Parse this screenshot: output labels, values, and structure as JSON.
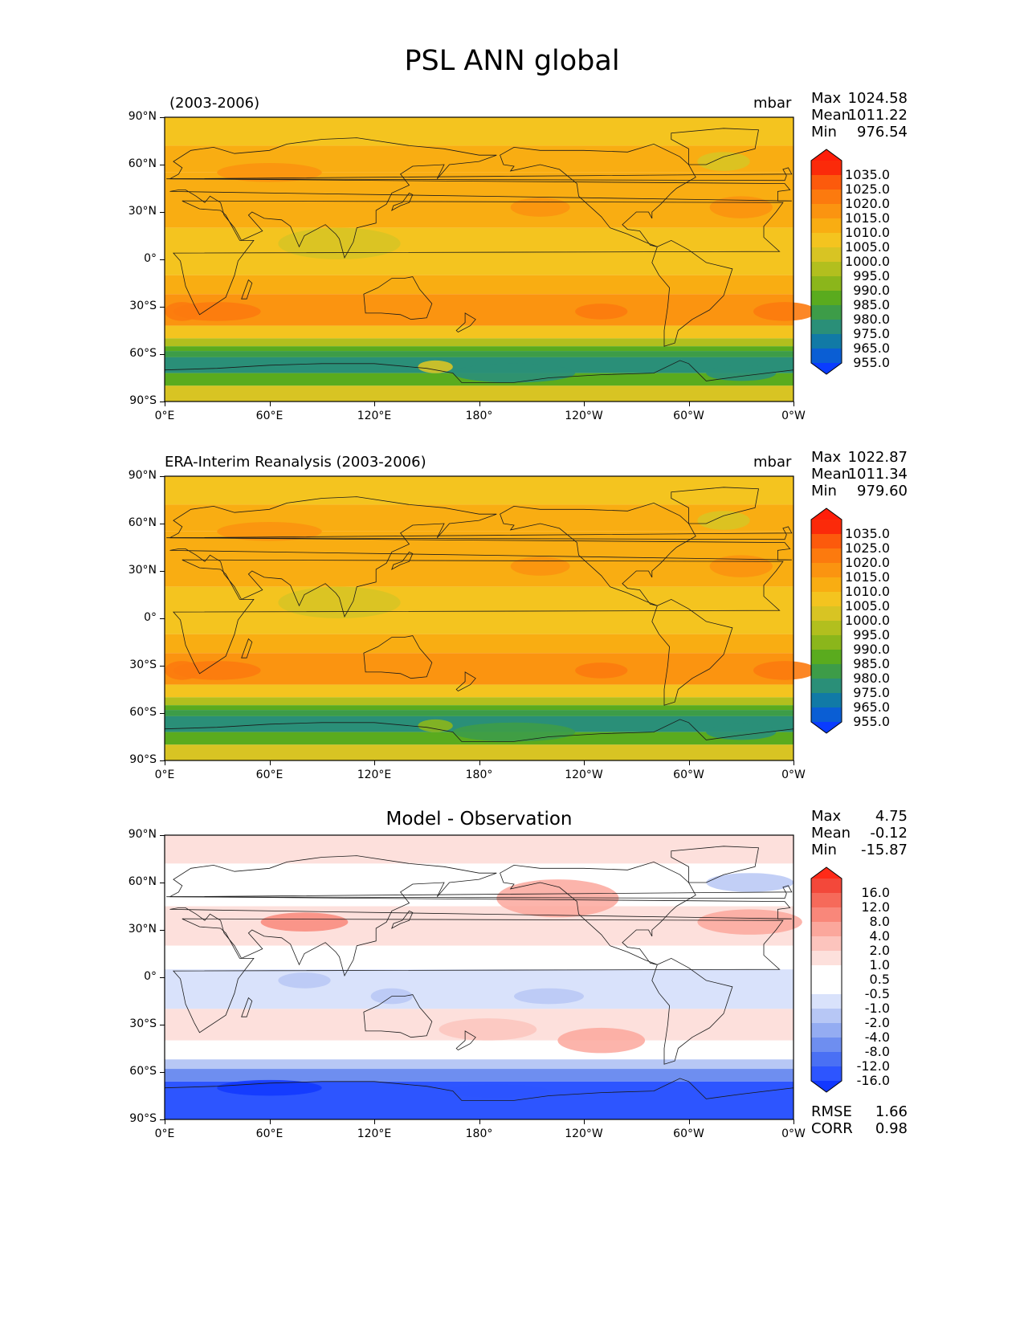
{
  "title": "PSL ANN global",
  "colors": {
    "abs_levels": [
      "#0a3cff",
      "#0a5ed4",
      "#117aa6",
      "#2a8f78",
      "#3d9c48",
      "#5aab1e",
      "#8bb61b",
      "#b2bf1e",
      "#d8c423",
      "#f4c41f",
      "#f9ad12",
      "#fb9410",
      "#fc7a0e",
      "#fc5a0c",
      "#fb2a0a",
      "#ff1e0a"
    ],
    "diff_levels": [
      "#1238ff",
      "#2d55ff",
      "#4a70f4",
      "#6e8ef0",
      "#94acf2",
      "#b7c7f5",
      "#d9e2fb",
      "#ffffff",
      "#ffffff",
      "#fde0dc",
      "#fcc4bd",
      "#fba79c",
      "#f9877a",
      "#f66a5a",
      "#f3483a",
      "#ff2a18"
    ],
    "land_outline": "#1a1a1a"
  },
  "panels": [
    {
      "id": "model",
      "left_title": "(2003-2006)",
      "center_title": "",
      "units": "mbar",
      "stats": [
        {
          "label": "Max",
          "value": "1024.58"
        },
        {
          "label": "Mean",
          "value": "1011.22"
        },
        {
          "label": "Min",
          "value": "976.54"
        }
      ],
      "colorbar_labels": [
        "1035.0",
        "1025.0",
        "1020.0",
        "1015.0",
        "1010.0",
        "1005.0",
        "1000.0",
        "995.0",
        "990.0",
        "985.0",
        "980.0",
        "975.0",
        "965.0",
        "955.0"
      ],
      "footer": []
    },
    {
      "id": "obs",
      "left_title": "ERA-Interim Reanalysis (2003-2006)",
      "center_title": "",
      "units": "mbar",
      "stats": [
        {
          "label": "Max",
          "value": "1022.87"
        },
        {
          "label": "Mean",
          "value": "1011.34"
        },
        {
          "label": "Min",
          "value": "979.60"
        }
      ],
      "colorbar_labels": [
        "1035.0",
        "1025.0",
        "1020.0",
        "1015.0",
        "1010.0",
        "1005.0",
        "1000.0",
        "995.0",
        "990.0",
        "985.0",
        "980.0",
        "975.0",
        "965.0",
        "955.0"
      ],
      "footer": []
    },
    {
      "id": "diff",
      "left_title": "",
      "center_title": "Model - Observation",
      "units": "",
      "stats": [
        {
          "label": "Max",
          "value": "4.75"
        },
        {
          "label": "Mean",
          "value": "-0.12"
        },
        {
          "label": "Min",
          "value": "-15.87"
        }
      ],
      "colorbar_labels": [
        "16.0",
        "12.0",
        "8.0",
        "4.0",
        "2.0",
        "1.0",
        "0.5",
        "-0.5",
        "-1.0",
        "-2.0",
        "-4.0",
        "-8.0",
        "-12.0",
        "-16.0"
      ],
      "footer": [
        {
          "label": "RMSE",
          "value": "1.66"
        },
        {
          "label": "CORR",
          "value": "0.98"
        }
      ]
    }
  ],
  "lat_ticks": [
    "90°N",
    "60°N",
    "30°N",
    "0°",
    "30°S",
    "60°S",
    "90°S"
  ],
  "lon_ticks": [
    "0°E",
    "60°E",
    "120°E",
    "180°",
    "120°W",
    "60°W",
    "0°W"
  ]
}
